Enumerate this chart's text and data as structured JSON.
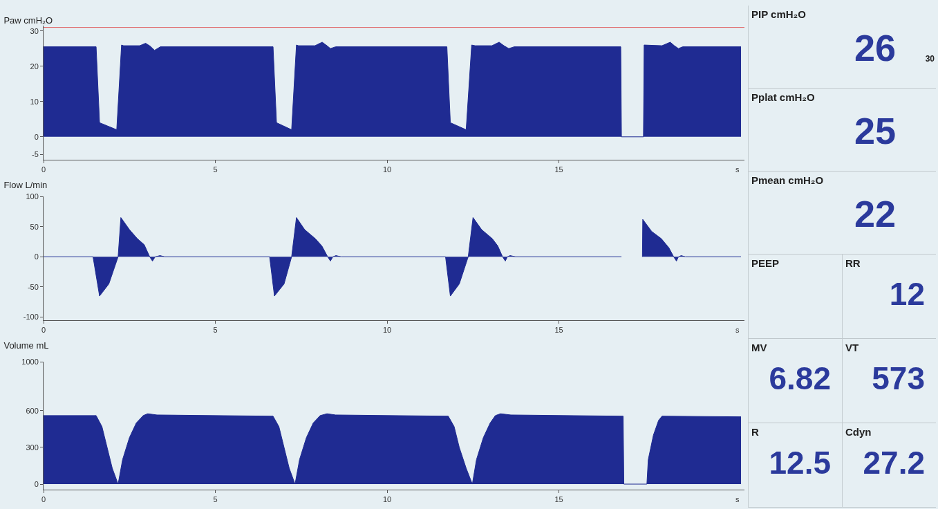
{
  "chart_data": [
    {
      "type": "area",
      "title": "Paw cmH₂O",
      "xlabel": "s",
      "xlim": [
        0,
        20.4
      ],
      "xticks": [
        0,
        5,
        10,
        15
      ],
      "ylim": [
        -6.5,
        31.5
      ],
      "yticks": [
        -5,
        0,
        10,
        20,
        30
      ],
      "x": [
        0,
        1.53,
        1.63,
        2.13,
        2.27,
        2.33,
        2.8,
        2.97,
        3.1,
        3.23,
        3.4,
        6.68,
        6.78,
        7.22,
        7.36,
        7.42,
        7.9,
        8.11,
        8.25,
        8.35,
        8.5,
        11.74,
        11.84,
        12.3,
        12.46,
        12.56,
        13.05,
        13.26,
        13.4,
        13.54,
        13.7,
        16.8,
        16.82,
        17.46,
        17.48,
        18.0,
        18.24,
        18.36,
        18.48,
        18.6,
        20.3
      ],
      "series": [
        {
          "color": "#1f2b92",
          "values": [
            25.5,
            25.5,
            4,
            2,
            26,
            25.8,
            25.8,
            26.5,
            25.7,
            24.5,
            25.5,
            25.5,
            4,
            2,
            26,
            25.8,
            25.8,
            26.8,
            25.8,
            25,
            25.5,
            25.5,
            4,
            2,
            26,
            25.8,
            25.8,
            26.8,
            25.8,
            25,
            25.5,
            25.5,
            0,
            0,
            26,
            25.8,
            26.8,
            25.8,
            25,
            25.5,
            25.5
          ]
        }
      ],
      "ref_lines": [
        {
          "axis": "y",
          "value": 31,
          "color": "#e06060"
        }
      ]
    },
    {
      "type": "area",
      "title": "Flow L/min",
      "xlabel": "s",
      "xlim": [
        0,
        20.4
      ],
      "xticks": [
        0,
        5,
        10,
        15
      ],
      "ylim": [
        -105,
        100
      ],
      "yticks": [
        -100,
        -50,
        0,
        50,
        100
      ],
      "x": [
        0,
        1.44,
        1.63,
        1.9,
        2.17,
        2.25,
        2.5,
        2.73,
        2.93,
        3.09,
        3.17,
        3.25,
        3.39,
        3.53,
        6.58,
        6.72,
        7.0,
        7.22,
        7.36,
        7.6,
        7.91,
        8.1,
        8.27,
        8.35,
        8.42,
        8.51,
        8.66,
        11.7,
        11.84,
        12.1,
        12.36,
        12.5,
        12.75,
        13.06,
        13.22,
        13.36,
        13.44,
        13.5,
        13.58,
        13.74,
        16.82,
        17.1,
        17.43,
        17.44,
        17.7,
        17.98,
        18.2,
        18.34,
        18.42,
        18.48,
        18.56,
        18.68,
        20.3
      ],
      "series": [
        {
          "color": "#1f2b92",
          "values": [
            0,
            0,
            -65,
            -45,
            0,
            65,
            45,
            30,
            20,
            0,
            -7,
            0,
            2,
            0,
            0,
            -65,
            -45,
            0,
            65,
            45,
            30,
            18,
            0,
            -7,
            0,
            2,
            0,
            0,
            -65,
            -45,
            0,
            65,
            45,
            30,
            18,
            0,
            -7,
            0,
            2,
            0,
            0,
            null,
            0,
            62,
            42,
            30,
            15,
            0,
            -7,
            0,
            2,
            0,
            0
          ]
        }
      ]
    },
    {
      "type": "area",
      "title": "Volume mL",
      "xlabel": "s",
      "xlim": [
        0,
        20.4
      ],
      "xticks": [
        0,
        5,
        10,
        15
      ],
      "ylim": [
        -45,
        1000
      ],
      "yticks": [
        0,
        300,
        600,
        1000
      ],
      "x": [
        0,
        1.53,
        1.7,
        1.85,
        2.0,
        2.17,
        2.3,
        2.5,
        2.7,
        2.9,
        3.03,
        3.3,
        6.68,
        6.85,
        7.0,
        7.15,
        7.32,
        7.45,
        7.65,
        7.85,
        8.05,
        8.25,
        8.5,
        11.78,
        11.95,
        12.1,
        12.3,
        12.48,
        12.6,
        12.8,
        13.0,
        13.15,
        13.3,
        13.6,
        16.87,
        16.89,
        17.54,
        17.56,
        17.6,
        17.75,
        17.9,
        18.0,
        20.3
      ],
      "series": [
        {
          "color": "#1f2b92",
          "values": [
            560,
            560,
            470,
            300,
            130,
            0,
            200,
            380,
            500,
            560,
            575,
            565,
            555,
            470,
            300,
            130,
            0,
            200,
            380,
            500,
            560,
            575,
            565,
            555,
            470,
            300,
            130,
            0,
            200,
            380,
            500,
            560,
            575,
            565,
            555,
            0,
            0,
            0,
            200,
            400,
            520,
            555,
            550
          ]
        }
      ]
    },
    {
      "type": "other",
      "categories": [
        "PIP cmH₂O",
        "Pplat cmH₂O",
        "Pmean cmH₂O",
        "PEEP",
        "RR",
        "MV",
        "VT",
        "R",
        "Cdyn"
      ],
      "values": [
        26,
        25,
        22,
        null,
        12,
        6.82,
        573,
        12.5,
        27.2
      ],
      "data_labels": true,
      "annotations": [
        "30"
      ]
    }
  ]
}
